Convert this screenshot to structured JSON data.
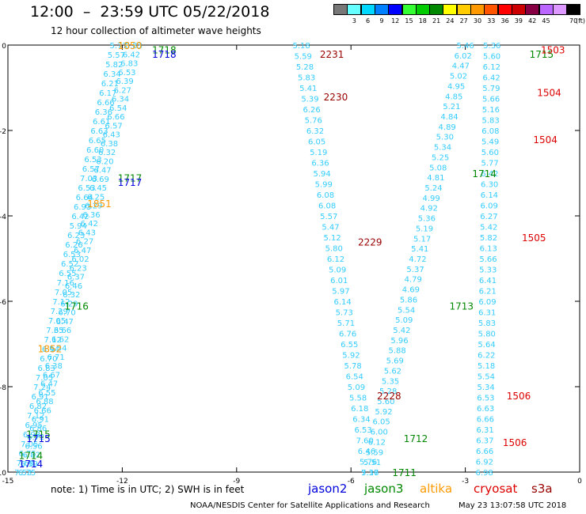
{
  "title": "12:00  –  23:59 UTC 05/22/2018",
  "subtitle": "12 hour collection of altimeter wave heights",
  "colorbar": {
    "unit": "(ft)",
    "levels": [
      {
        "label": "",
        "color": "#777777"
      },
      {
        "label": "3",
        "color": "#66ffff"
      },
      {
        "label": "6",
        "color": "#00d8ff"
      },
      {
        "label": "9",
        "color": "#0080ff"
      },
      {
        "label": "12",
        "color": "#0000ff"
      },
      {
        "label": "15",
        "color": "#33ff33"
      },
      {
        "label": "18",
        "color": "#00cc00"
      },
      {
        "label": "21",
        "color": "#008800"
      },
      {
        "label": "24",
        "color": "#ffff00"
      },
      {
        "label": "27",
        "color": "#ffcc00"
      },
      {
        "label": "30",
        "color": "#ff9900"
      },
      {
        "label": "33",
        "color": "#ff5500"
      },
      {
        "label": "36",
        "color": "#ff0000"
      },
      {
        "label": "39",
        "color": "#cc0000"
      },
      {
        "label": "42",
        "color": "#880044"
      },
      {
        "label": "45",
        "color": "#bb66ff"
      },
      {
        "label": "",
        "color": "#dd99ff"
      },
      {
        "label": "70",
        "color": "#000000"
      }
    ]
  },
  "footnote": "note:  1) Time is in UTC;  2) SWH is in feet",
  "legend": [
    {
      "name": "jason2",
      "color": "#0000dd"
    },
    {
      "name": "jason3",
      "color": "#008800"
    },
    {
      "name": "altika",
      "color": "#ff9900"
    },
    {
      "name": "cryosat",
      "color": "#dd0000"
    },
    {
      "name": "s3a",
      "color": "#990000"
    }
  ],
  "credit": "NOAA/NESDIS Center for Satellite Applications and Research",
  "stamp": "May 23 13:07:58 UTC 2018",
  "chart_data": {
    "type": "scatter",
    "xlim": [
      -15,
      0
    ],
    "ylim": [
      -10,
      0
    ],
    "x_ticks": [
      "-15",
      "-12",
      "-9",
      "-6",
      "-3",
      "0"
    ],
    "y_ticks": [
      "0",
      "-2",
      "-4",
      "-6",
      "-8",
      "-10"
    ],
    "track_color": "#33ccff",
    "tracks": [
      {
        "name": "ascending-track-1",
        "from": [
          -14.6,
          -10.0
        ],
        "to": [
          -12.1,
          0.0
        ],
        "values": [
          "7.53",
          "7.68",
          "6.75",
          "7.05",
          "6.98",
          "6.95",
          "7.12",
          "6.82",
          "6.91",
          "7.24",
          "7.05",
          "6.83",
          "6.70",
          "6.94",
          "7.12",
          "7.35",
          "7.05",
          "7.29",
          "7.12",
          "7.05",
          "7.16",
          "6.55",
          "6.52",
          "6.53",
          "6.26",
          "6.23",
          "5.94",
          "6.42",
          "6.93",
          "6.64",
          "6.53",
          "7.03",
          "6.57",
          "6.53",
          "6.60",
          "6.65",
          "6.63",
          "6.61",
          "6.36",
          "6.66",
          "6.17",
          "6.21",
          "6.34",
          "5.82",
          "5.57",
          "5.77"
        ]
      },
      {
        "name": "ascending-track-2",
        "from": [
          -14.5,
          -10.0
        ],
        "to": [
          -11.7,
          0.0
        ],
        "values": [
          "6.75",
          "6.59",
          "6.82",
          "6.56",
          "6.72",
          "6.86",
          "6.91",
          "6.66",
          "6.88",
          "6.55",
          "6.47",
          "6.67",
          "6.38",
          "6.71",
          "6.54",
          "6.62",
          "6.66",
          "6.47",
          "6.70",
          "6.29",
          "6.32",
          "6.46",
          "6.37",
          "6.23",
          "6.02",
          "6.47",
          "6.27",
          "6.43",
          "6.42",
          "6.36",
          "6.29",
          "6.25",
          "6.45",
          "6.69",
          "6.47",
          "6.20",
          "6.32",
          "6.38",
          "6.43",
          "6.57",
          "6.66",
          "6.54",
          "6.34",
          "6.27",
          "6.39",
          "6.53",
          "6.83",
          "6.42",
          "6.83"
        ]
      },
      {
        "name": "descending-track-1",
        "from": [
          -7.3,
          0.0
        ],
        "to": [
          -5.5,
          -10.0
        ],
        "values": [
          "5.18",
          "5.59",
          "5.28",
          "5.83",
          "5.41",
          "5.39",
          "6.26",
          "5.76",
          "6.32",
          "6.05",
          "5.19",
          "6.36",
          "5.94",
          "5.99",
          "6.08",
          "6.08",
          "5.57",
          "5.47",
          "5.12",
          "5.80",
          "6.12",
          "5.09",
          "6.01",
          "5.97",
          "6.14",
          "5.73",
          "5.71",
          "6.76",
          "6.55",
          "5.92",
          "5.78",
          "6.54",
          "5.09",
          "5.58",
          "6.18",
          "6.34",
          "6.53",
          "7.60",
          "6.46",
          "5.76",
          "7.16"
        ]
      },
      {
        "name": "ascending-track-3",
        "from": [
          -5.5,
          -10.0
        ],
        "to": [
          -3.0,
          0.0
        ],
        "values": [
          "5.37",
          "5.51",
          "5.59",
          "6.12",
          "6.00",
          "6.05",
          "5.92",
          "5.60",
          "5.28",
          "5.35",
          "5.62",
          "5.69",
          "5.88",
          "5.96",
          "5.42",
          "5.09",
          "5.54",
          "5.86",
          "4.69",
          "4.79",
          "5.37",
          "4.72",
          "5.41",
          "5.17",
          "5.19",
          "5.36",
          "4.92",
          "4.99",
          "5.24",
          "4.81",
          "5.08",
          "5.25",
          "5.34",
          "5.30",
          "4.89",
          "4.84",
          "5.21",
          "4.85",
          "4.95",
          "5.02",
          "4.47",
          "6.02",
          "5.46"
        ]
      },
      {
        "name": "descending-track-2",
        "from": [
          -2.3,
          0.0
        ],
        "to": [
          -2.5,
          -10.0
        ],
        "values": [
          "5.36",
          "5.60",
          "6.12",
          "6.42",
          "5.79",
          "5.66",
          "5.16",
          "5.83",
          "6.08",
          "5.49",
          "5.60",
          "5.77",
          "6.42",
          "6.30",
          "6.14",
          "6.09",
          "6.27",
          "5.42",
          "5.82",
          "6.13",
          "5.66",
          "5.33",
          "6.41",
          "6.21",
          "6.09",
          "6.31",
          "5.83",
          "5.80",
          "5.64",
          "6.22",
          "5.18",
          "5.54",
          "5.34",
          "6.53",
          "6.63",
          "6.66",
          "6.31",
          "6.37",
          "6.66",
          "6.92",
          "6.98"
        ]
      }
    ],
    "pass_labels": [
      {
        "text": "1850",
        "x": -11.8,
        "y": 0.0,
        "sat": "altika"
      },
      {
        "text": "1718",
        "x": -10.9,
        "y": -0.1,
        "sat": "jason3"
      },
      {
        "text": "1718",
        "x": -10.9,
        "y": -0.2,
        "sat": "jason2"
      },
      {
        "text": "1717",
        "x": -11.8,
        "y": -3.1,
        "sat": "jason3"
      },
      {
        "text": "1717",
        "x": -11.8,
        "y": -3.2,
        "sat": "jason2"
      },
      {
        "text": "1851",
        "x": -12.6,
        "y": -3.7,
        "sat": "altika"
      },
      {
        "text": "1716",
        "x": -13.2,
        "y": -6.1,
        "sat": "jason3"
      },
      {
        "text": "1852",
        "x": -13.9,
        "y": -7.1,
        "sat": "altika"
      },
      {
        "text": "1715",
        "x": -14.2,
        "y": -9.1,
        "sat": "jason3"
      },
      {
        "text": "1715",
        "x": -14.2,
        "y": -9.2,
        "sat": "jason2"
      },
      {
        "text": "1714",
        "x": -14.4,
        "y": -9.6,
        "sat": "jason3"
      },
      {
        "text": "1714",
        "x": -14.4,
        "y": -9.8,
        "sat": "jason2"
      },
      {
        "text": "2231",
        "x": -6.5,
        "y": -0.2,
        "sat": "s3a"
      },
      {
        "text": "2230",
        "x": -6.4,
        "y": -1.2,
        "sat": "s3a"
      },
      {
        "text": "2229",
        "x": -5.5,
        "y": -4.6,
        "sat": "s3a"
      },
      {
        "text": "2228",
        "x": -5.0,
        "y": -8.2,
        "sat": "s3a"
      },
      {
        "text": "1713",
        "x": -3.1,
        "y": -6.1,
        "sat": "jason3"
      },
      {
        "text": "1712",
        "x": -4.3,
        "y": -9.2,
        "sat": "jason3"
      },
      {
        "text": "1711",
        "x": -4.6,
        "y": -10.0,
        "sat": "jason3"
      },
      {
        "text": "1714",
        "x": -2.5,
        "y": -3.0,
        "sat": "jason3"
      },
      {
        "text": "1715",
        "x": -1.0,
        "y": -0.2,
        "sat": "jason3"
      },
      {
        "text": "1503",
        "x": -0.7,
        "y": -0.1,
        "sat": "cryosat"
      },
      {
        "text": "1504",
        "x": -0.8,
        "y": -1.1,
        "sat": "cryosat"
      },
      {
        "text": "1504",
        "x": -0.9,
        "y": -2.2,
        "sat": "cryosat"
      },
      {
        "text": "1505",
        "x": -1.2,
        "y": -4.5,
        "sat": "cryosat"
      },
      {
        "text": "1506",
        "x": -1.6,
        "y": -8.2,
        "sat": "cryosat"
      },
      {
        "text": "1506",
        "x": -1.7,
        "y": -9.3,
        "sat": "cryosat"
      }
    ],
    "grid": false,
    "legend_position": "bottom"
  }
}
